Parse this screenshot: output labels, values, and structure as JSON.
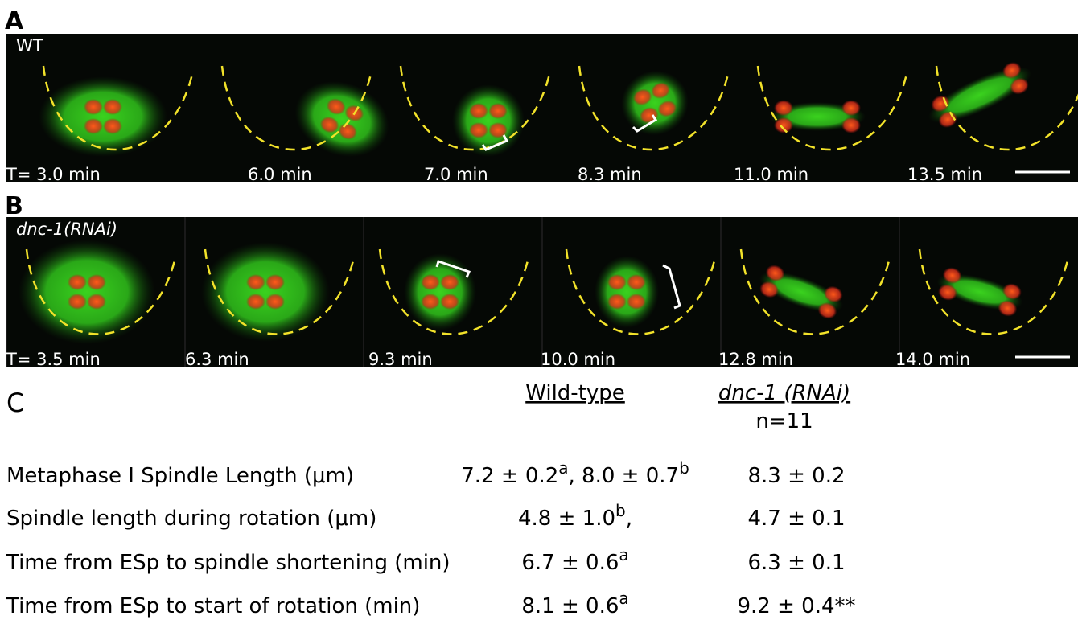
{
  "panels": [
    {
      "label": "A",
      "condition": "WT",
      "frames": [
        "T= 3.0 min",
        "6.0 min",
        "7.0 min",
        "8.3 min",
        "11.0 min",
        "13.5 min"
      ]
    },
    {
      "label": "B",
      "condition": "dnc-1(RNAi)",
      "frames": [
        "T= 3.5 min",
        "6.3 min",
        "9.3 min",
        "10.0 min",
        "12.8 min",
        "14.0 min"
      ]
    }
  ],
  "table": {
    "label": "C",
    "columns": [
      "Wild-type",
      "dnc-1 (RNAi)"
    ],
    "n": "n=11",
    "rows": [
      {
        "label": "Metaphase I Spindle Length (μm)",
        "cells": [
          [
            {
              "text": "7.2 ± 0.2"
            },
            {
              "sup": "a"
            },
            {
              "text": ", 8.0 ± 0.7"
            },
            {
              "sup": "b"
            }
          ],
          [
            {
              "text": "8.3 ± 0.2"
            }
          ]
        ]
      },
      {
        "label": "Spindle length during rotation (μm)",
        "cells": [
          [
            {
              "text": "4.8 ± 1.0"
            },
            {
              "sup": "b"
            },
            {
              "text": ","
            }
          ],
          [
            {
              "text": "4.7 ± 0.1"
            }
          ]
        ]
      },
      {
        "label": "Time from ESp to spindle shortening (min)",
        "cells": [
          [
            {
              "text": "6.7 ± 0.6"
            },
            {
              "sup": "a"
            }
          ],
          [
            {
              "text": "6.3 ± 0.1"
            }
          ]
        ]
      },
      {
        "label": "Time from ESp to start of rotation (min)",
        "cells": [
          [
            {
              "text": "8.1 ± 0.6"
            },
            {
              "sup": "a"
            }
          ],
          [
            {
              "text": "9.2 ± 0.4**"
            }
          ]
        ]
      }
    ]
  }
}
